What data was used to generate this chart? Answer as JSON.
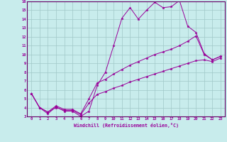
{
  "xlabel": "Windchill (Refroidissement éolien,°C)",
  "background_color": "#c8ecec",
  "grid_color": "#a0c8c8",
  "line_color": "#990099",
  "spine_color": "#660066",
  "xlim": [
    -0.5,
    23.5
  ],
  "ylim": [
    3,
    16
  ],
  "xticks": [
    0,
    1,
    2,
    3,
    4,
    5,
    6,
    7,
    8,
    9,
    10,
    11,
    12,
    13,
    14,
    15,
    16,
    17,
    18,
    19,
    20,
    21,
    22,
    23
  ],
  "yticks": [
    3,
    4,
    5,
    6,
    7,
    8,
    9,
    10,
    11,
    12,
    13,
    14,
    15,
    16
  ],
  "series": [
    [
      5.6,
      4.0,
      3.3,
      4.1,
      3.6,
      3.6,
      3.0,
      3.6,
      6.5,
      8.0,
      11.0,
      14.1,
      15.3,
      14.0,
      15.0,
      15.9,
      15.3,
      15.4,
      16.1,
      13.2,
      12.5,
      10.1,
      9.4,
      9.8
    ],
    [
      5.6,
      4.0,
      3.5,
      4.2,
      3.8,
      3.8,
      3.3,
      5.0,
      6.8,
      7.2,
      7.8,
      8.3,
      8.8,
      9.2,
      9.6,
      10.0,
      10.3,
      10.6,
      11.0,
      11.5,
      12.1,
      10.0,
      9.4,
      9.8
    ],
    [
      5.6,
      4.0,
      3.5,
      4.0,
      3.7,
      3.7,
      3.2,
      4.5,
      5.5,
      5.8,
      6.2,
      6.5,
      6.9,
      7.2,
      7.5,
      7.8,
      8.1,
      8.4,
      8.7,
      9.0,
      9.3,
      9.4,
      9.2,
      9.6
    ]
  ]
}
